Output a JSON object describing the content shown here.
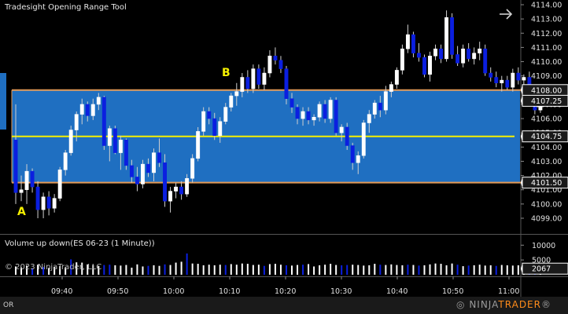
{
  "window": {
    "title": "Tradesight Opening Range Tool",
    "footer_left": "OR",
    "brand_left": "NINJA",
    "brand_right": "TRADER",
    "brand_suffix": "®",
    "copyright": "© 2023 NinjaTrader, LLC"
  },
  "price_axis": {
    "labels": [
      "4114.00",
      "4113.00",
      "4112.00",
      "4111.00",
      "4110.00",
      "4109.00",
      "4108.00",
      "4107.00",
      "4106.00",
      "4105.00",
      "4104.00",
      "4103.00",
      "4102.00",
      "4101.00",
      "4100.00",
      "4099.00"
    ],
    "values": [
      4114,
      4113,
      4112,
      4111,
      4110,
      4109,
      4108,
      4107,
      4106,
      4105,
      4104,
      4103,
      4102,
      4101,
      4100,
      4099
    ],
    "range": [
      4098.3,
      4114.4
    ],
    "badges": [
      {
        "label": "4108.00",
        "value": 4108.0,
        "color": "#ffffff"
      },
      {
        "label": "4107.25",
        "value": 4107.25,
        "color": "#ffffff"
      },
      {
        "label": "4104.75",
        "value": 4104.75,
        "color": "#ffffff"
      },
      {
        "label": "4101.50",
        "value": 4101.5,
        "color": "#ffffff"
      }
    ]
  },
  "opening_range": {
    "high": 4108.0,
    "low": 4101.5,
    "mid": 4104.75,
    "fill_color": "#1f6fc1",
    "border_color": "#e39a57",
    "mid_color": "#f5f000",
    "label_a": "A",
    "label_b": "B"
  },
  "time_axis": {
    "labels": [
      "09:40",
      "09:50",
      "10:00",
      "10:10",
      "10:20",
      "10:30",
      "10:40",
      "10:50",
      "11:00"
    ]
  },
  "volume_panel": {
    "title": "Volume up down(ES 06-23 (1 Minute))",
    "axis_labels": [
      "10000",
      "5000"
    ],
    "axis_values": [
      10000,
      5000
    ],
    "range": [
      0,
      13000
    ],
    "badge": {
      "label": "2067",
      "value": 2067
    }
  },
  "chart_data": {
    "type": "candlestick",
    "colors": {
      "up": "#ffffff",
      "down": "#0b1fe0"
    },
    "candles": [
      [
        4104.5,
        4107.0,
        4100.0,
        4100.8
      ],
      [
        4100.8,
        4102.0,
        4100.2,
        4101.0
      ],
      [
        4101.0,
        4102.8,
        4100.0,
        4102.3
      ],
      [
        4102.3,
        4102.5,
        4100.8,
        4101.2
      ],
      [
        4101.2,
        4101.6,
        4099.0,
        4099.6
      ],
      [
        4099.6,
        4100.8,
        4099.0,
        4100.5
      ],
      [
        4100.5,
        4100.9,
        4099.2,
        4099.7
      ],
      [
        4099.7,
        4100.7,
        4099.4,
        4100.4
      ],
      [
        4100.4,
        4102.6,
        4100.2,
        4102.4
      ],
      [
        4102.4,
        4103.8,
        4102.0,
        4103.6
      ],
      [
        4103.6,
        4105.5,
        4103.4,
        4105.2
      ],
      [
        4105.2,
        4106.5,
        4104.4,
        4106.3
      ],
      [
        4106.3,
        4107.4,
        4105.6,
        4107.0
      ],
      [
        4107.0,
        4107.2,
        4105.8,
        4106.2
      ],
      [
        4106.2,
        4107.4,
        4105.9,
        4107.0
      ],
      [
        4107.0,
        4107.8,
        4106.6,
        4107.5
      ],
      [
        4107.5,
        4107.6,
        4103.8,
        4104.1
      ],
      [
        4104.1,
        4105.5,
        4103.0,
        4105.3
      ],
      [
        4105.3,
        4105.5,
        4103.5,
        4103.6
      ],
      [
        4103.6,
        4104.8,
        4102.4,
        4104.5
      ],
      [
        4104.5,
        4104.6,
        4102.4,
        4102.7
      ],
      [
        4102.7,
        4103.1,
        4101.5,
        4101.9
      ],
      [
        4101.9,
        4102.6,
        4100.9,
        4101.4
      ],
      [
        4101.4,
        4103.1,
        4101.1,
        4102.8
      ],
      [
        4102.8,
        4103.2,
        4101.9,
        4102.2
      ],
      [
        4102.2,
        4103.9,
        4101.6,
        4103.6
      ],
      [
        4103.6,
        4104.6,
        4102.6,
        4102.9
      ],
      [
        4102.9,
        4103.5,
        4099.8,
        4100.2
      ],
      [
        4100.2,
        4101.2,
        4099.4,
        4100.9
      ],
      [
        4100.9,
        4101.5,
        4100.4,
        4101.2
      ],
      [
        4101.2,
        4101.6,
        4100.3,
        4100.7
      ],
      [
        4100.7,
        4102.1,
        4100.5,
        4101.8
      ],
      [
        4101.8,
        4103.5,
        4101.5,
        4103.2
      ],
      [
        4103.2,
        4105.4,
        4103.0,
        4105.1
      ],
      [
        4105.1,
        4106.8,
        4104.8,
        4106.5
      ],
      [
        4106.5,
        4106.8,
        4105.6,
        4106.0
      ],
      [
        4106.0,
        4106.4,
        4104.5,
        4104.8
      ],
      [
        4104.8,
        4106.1,
        4104.3,
        4105.8
      ],
      [
        4105.8,
        4107.1,
        4105.6,
        4106.8
      ],
      [
        4106.8,
        4107.8,
        4106.5,
        4107.6
      ],
      [
        4107.6,
        4108.5,
        4106.9,
        4107.9
      ],
      [
        4107.9,
        4109.2,
        4107.5,
        4108.9
      ],
      [
        4108.9,
        4109.4,
        4107.8,
        4108.1
      ],
      [
        4108.1,
        4109.8,
        4107.8,
        4109.5
      ],
      [
        4109.5,
        4109.8,
        4108.1,
        4108.4
      ],
      [
        4108.4,
        4109.6,
        4108.0,
        4109.2
      ],
      [
        4109.2,
        4110.8,
        4108.9,
        4110.4
      ],
      [
        4110.4,
        4111.0,
        4109.8,
        4110.1
      ],
      [
        4110.1,
        4110.4,
        4109.2,
        4109.5
      ],
      [
        4109.5,
        4109.7,
        4107.0,
        4107.4
      ],
      [
        4107.4,
        4107.8,
        4106.4,
        4106.8
      ],
      [
        4106.8,
        4107.0,
        4105.6,
        4106.0
      ],
      [
        4106.0,
        4106.8,
        4105.5,
        4106.5
      ],
      [
        4106.5,
        4106.8,
        4105.6,
        4105.9
      ],
      [
        4105.9,
        4106.3,
        4105.5,
        4106.1
      ],
      [
        4106.1,
        4107.2,
        4105.8,
        4107.0
      ],
      [
        4107.0,
        4107.3,
        4105.7,
        4106.0
      ],
      [
        4106.0,
        4107.5,
        4105.7,
        4107.3
      ],
      [
        4107.3,
        4107.5,
        4104.8,
        4105.0
      ],
      [
        4105.0,
        4105.6,
        4104.4,
        4105.4
      ],
      [
        4105.4,
        4105.7,
        4103.8,
        4104.1
      ],
      [
        4104.1,
        4104.3,
        4102.4,
        4102.9
      ],
      [
        4102.9,
        4103.7,
        4102.1,
        4103.4
      ],
      [
        4103.4,
        4105.9,
        4103.2,
        4105.7
      ],
      [
        4105.7,
        4106.6,
        4105.0,
        4106.3
      ],
      [
        4106.3,
        4107.3,
        4106.0,
        4107.1
      ],
      [
        4107.1,
        4107.6,
        4106.1,
        4106.6
      ],
      [
        4106.6,
        4108.3,
        4106.3,
        4107.9
      ],
      [
        4107.9,
        4108.6,
        4107.5,
        4108.4
      ],
      [
        4108.4,
        4109.6,
        4108.1,
        4109.4
      ],
      [
        4109.4,
        4111.2,
        4109.1,
        4110.9
      ],
      [
        4110.9,
        4112.6,
        4110.6,
        4111.9
      ],
      [
        4111.9,
        4112.1,
        4110.3,
        4110.6
      ],
      [
        4110.6,
        4111.3,
        4110.0,
        4110.3
      ],
      [
        4110.3,
        4110.5,
        4108.9,
        4109.1
      ],
      [
        4109.1,
        4110.7,
        4108.6,
        4110.4
      ],
      [
        4110.4,
        4111.2,
        4110.1,
        4110.9
      ],
      [
        4110.9,
        4111.2,
        4109.9,
        4110.2
      ],
      [
        4110.2,
        4113.6,
        4110.0,
        4113.1
      ],
      [
        4113.1,
        4113.4,
        4110.2,
        4110.5
      ],
      [
        4110.5,
        4111.1,
        4109.7,
        4109.9
      ],
      [
        4109.9,
        4111.2,
        4109.6,
        4110.9
      ],
      [
        4110.9,
        4111.3,
        4110.0,
        4110.2
      ],
      [
        4110.2,
        4111.0,
        4109.8,
        4110.6
      ],
      [
        4110.6,
        4111.4,
        4110.1,
        4110.9
      ],
      [
        4110.9,
        4111.2,
        4109.0,
        4109.2
      ],
      [
        4109.2,
        4109.6,
        4108.6,
        4108.9
      ],
      [
        4108.9,
        4109.3,
        4108.2,
        4108.5
      ],
      [
        4108.5,
        4109.0,
        4107.9,
        4108.7
      ],
      [
        4108.7,
        4109.0,
        4108.0,
        4108.2
      ],
      [
        4108.2,
        4109.5,
        4107.9,
        4109.2
      ],
      [
        4109.2,
        4109.6,
        4108.4,
        4108.7
      ],
      [
        4108.7,
        4109.1,
        4108.2,
        4108.9
      ],
      [
        4108.9,
        4109.3,
        4107.6,
        4107.9
      ],
      [
        4107.9,
        4108.0,
        4106.3,
        4106.6
      ],
      [
        4106.6,
        4107.7,
        4106.4,
        4107.3
      ]
    ],
    "volume": [
      2800,
      2500,
      3100,
      2200,
      3400,
      2600,
      2300,
      2700,
      2900,
      2500,
      5200,
      4200,
      4100,
      3500,
      3300,
      3000,
      3300,
      3400,
      3200,
      3100,
      3300,
      2400,
      3500,
      2800,
      3000,
      3200,
      3000,
      3500,
      3300,
      4100,
      4400,
      7200,
      3800,
      3700,
      3200,
      3400,
      3200,
      3400,
      3300,
      3600,
      3400,
      3800,
      3700,
      3300,
      3400,
      3000,
      3600,
      3700,
      3400,
      3200,
      3100,
      3300,
      3400,
      3600,
      2800,
      3200,
      3400,
      3700,
      3300,
      3200,
      3300,
      3400,
      3300,
      3100,
      3200,
      3700,
      3400,
      3300,
      3500,
      3300,
      3200,
      3400,
      3300,
      3100,
      3200,
      3500,
      3800,
      3700,
      3200,
      3800,
      3400,
      2900,
      3100,
      3200,
      3400,
      3100,
      3200,
      3000,
      3300,
      3200,
      3100,
      3200,
      3000,
      2900,
      3100,
      2067
    ]
  }
}
